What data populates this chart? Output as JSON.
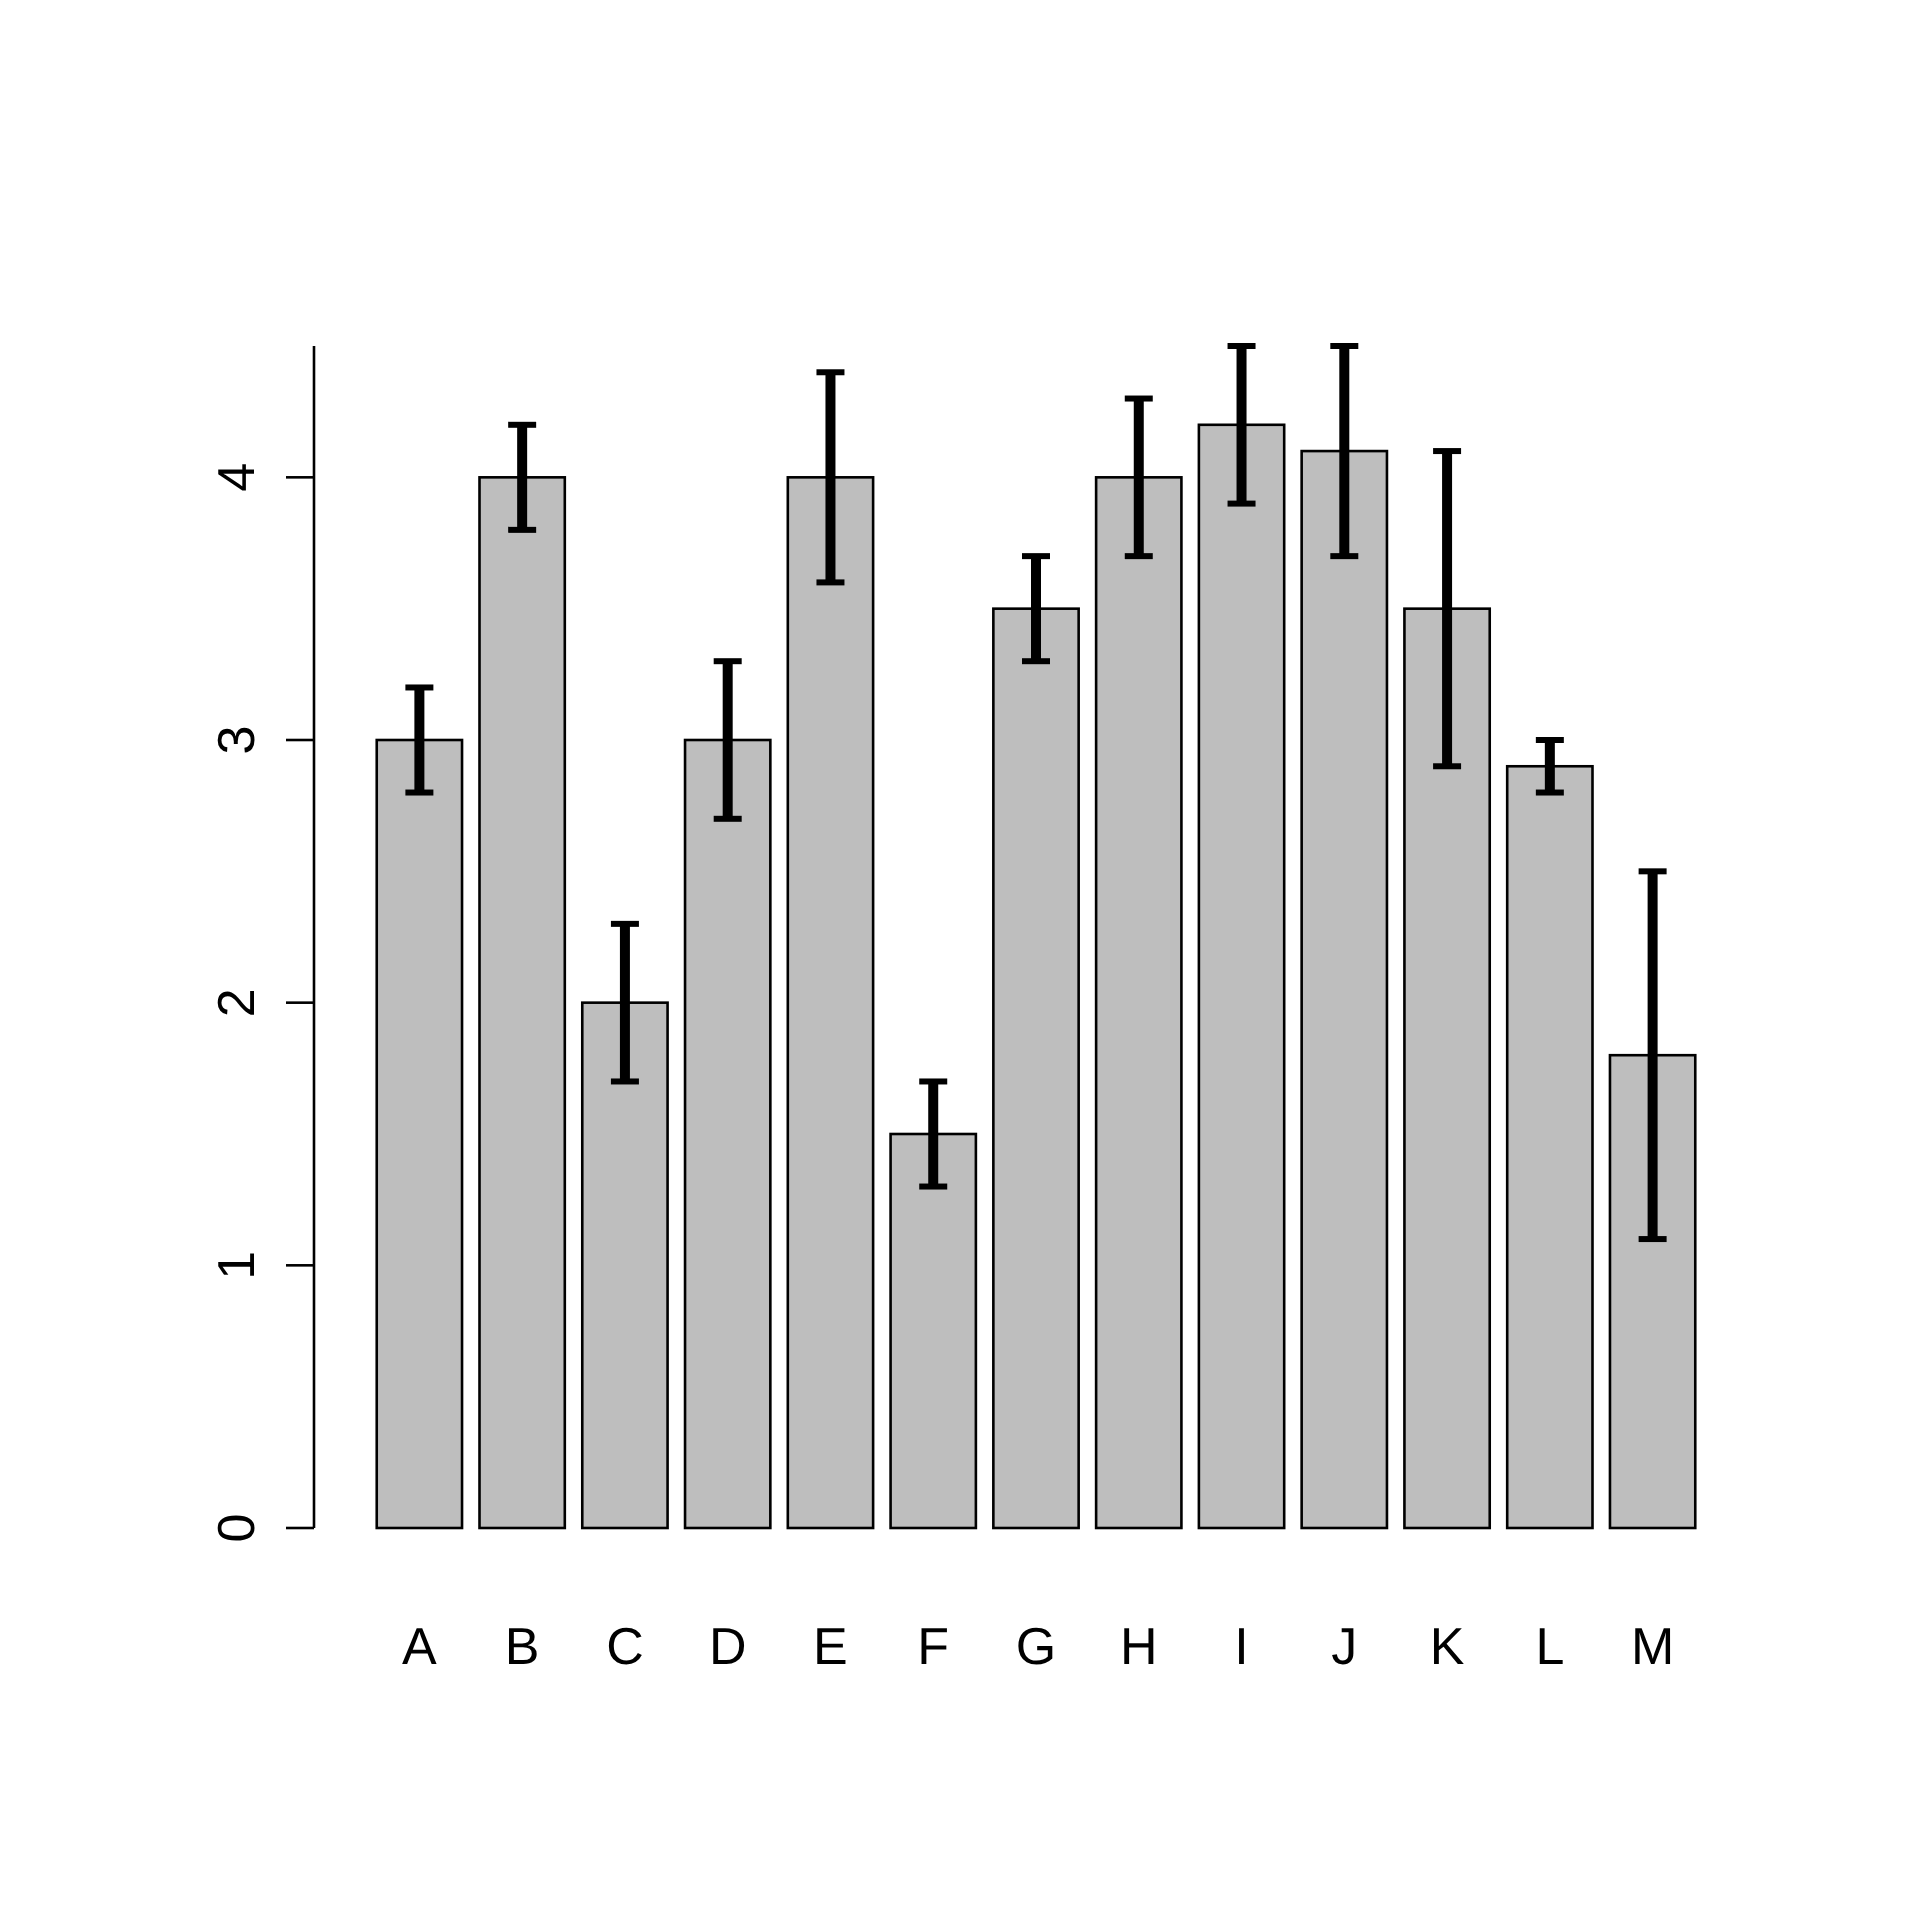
{
  "chart_data": {
    "type": "bar",
    "categories": [
      "A",
      "B",
      "C",
      "D",
      "E",
      "F",
      "G",
      "H",
      "I",
      "J",
      "K",
      "L",
      "M"
    ],
    "values": [
      3,
      4,
      2,
      3,
      4,
      1.5,
      3.5,
      4,
      4.2,
      4.1,
      3.5,
      2.9,
      1.8
    ],
    "errors": [
      0.2,
      0.2,
      0.3,
      0.3,
      0.4,
      0.2,
      0.2,
      0.3,
      0.3,
      0.4,
      0.6,
      0.1,
      0.7
    ],
    "color": "#bebebe",
    "ylim": [
      0,
      4.5
    ],
    "yticks": [
      0,
      1,
      2,
      3,
      4
    ]
  }
}
